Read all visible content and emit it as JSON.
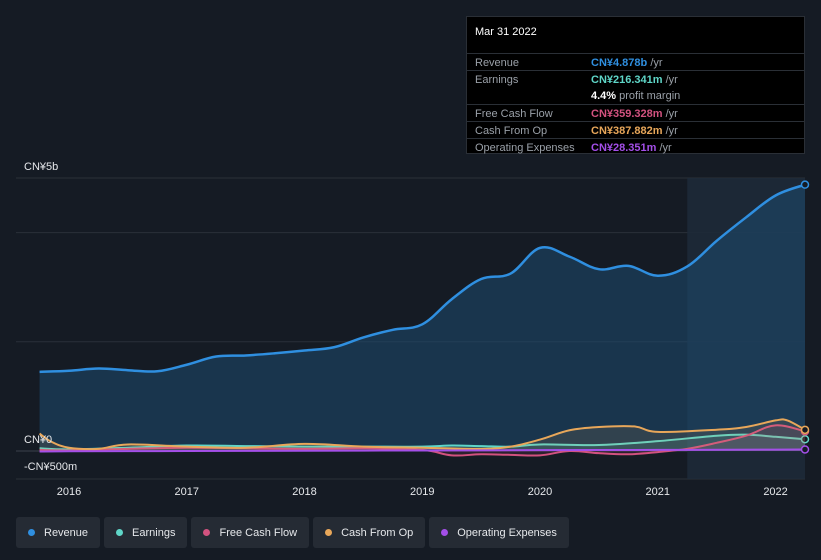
{
  "tooltip": {
    "date": "Mar 31 2022",
    "rows": [
      {
        "label": "Revenue",
        "value": "CN¥4.878b",
        "unit": " /yr",
        "color": "#2f8fe0"
      },
      {
        "label": "Earnings",
        "value": "CN¥216.341m",
        "unit": " /yr",
        "color": "#5fd6c8"
      },
      {
        "label": "",
        "value": "4.4%",
        "unit": " profit margin",
        "color": "#ffffff"
      },
      {
        "label": "Free Cash Flow",
        "value": "CN¥359.328m",
        "unit": " /yr",
        "color": "#d2527f"
      },
      {
        "label": "Cash From Op",
        "value": "CN¥387.882m",
        "unit": " /yr",
        "color": "#e8a75a"
      },
      {
        "label": "Operating Expenses",
        "value": "CN¥28.351m",
        "unit": " /yr",
        "color": "#a44fe8"
      }
    ]
  },
  "legend": [
    {
      "label": "Revenue",
      "color": "#2f8fe0"
    },
    {
      "label": "Earnings",
      "color": "#5fd6c8"
    },
    {
      "label": "Free Cash Flow",
      "color": "#d2527f"
    },
    {
      "label": "Cash From Op",
      "color": "#e8a75a"
    },
    {
      "label": "Operating Expenses",
      "color": "#a44fe8"
    }
  ],
  "chart_data": {
    "type": "area",
    "y_tick_labels": [
      "CN¥5b",
      "CN¥0",
      "-CN¥500m"
    ],
    "ylim": [
      -500,
      5000
    ],
    "x_ticks": [
      {
        "label": "2016",
        "x": 2016.0
      },
      {
        "label": "2017",
        "x": 2017.0
      },
      {
        "label": "2018",
        "x": 2018.0
      },
      {
        "label": "2019",
        "x": 2019.0
      },
      {
        "label": "2020",
        "x": 2020.0
      },
      {
        "label": "2021",
        "x": 2021.0
      },
      {
        "label": "2022",
        "x": 2022.0
      }
    ],
    "xlim": [
      2015.55,
      2022.25
    ],
    "highlight_start": 2021.25,
    "y_unit": "CN¥m",
    "series": [
      {
        "name": "Revenue",
        "color": "#2f8fe0",
        "filled": true,
        "x": [
          2015.75,
          2016.0,
          2016.25,
          2016.5,
          2016.75,
          2017.0,
          2017.25,
          2017.5,
          2017.75,
          2018.0,
          2018.25,
          2018.5,
          2018.75,
          2019.0,
          2019.25,
          2019.5,
          2019.75,
          2020.0,
          2020.25,
          2020.5,
          2020.75,
          2021.0,
          2021.25,
          2021.5,
          2021.75,
          2022.0,
          2022.25
        ],
        "y": [
          1450,
          1470,
          1510,
          1480,
          1460,
          1580,
          1730,
          1750,
          1790,
          1840,
          1900,
          2080,
          2220,
          2320,
          2780,
          3150,
          3250,
          3720,
          3560,
          3330,
          3390,
          3210,
          3380,
          3850,
          4280,
          4680,
          4878
        ]
      },
      {
        "name": "Earnings",
        "color": "#5fd6c8",
        "x": [
          2015.75,
          2016.0,
          2016.5,
          2017.0,
          2017.5,
          2018.0,
          2018.5,
          2019.0,
          2019.25,
          2019.5,
          2019.75,
          2020.0,
          2020.5,
          2021.0,
          2021.5,
          2021.75,
          2022.0,
          2022.25
        ],
        "y": [
          50,
          30,
          60,
          100,
          90,
          80,
          80,
          80,
          100,
          90,
          80,
          120,
          110,
          180,
          280,
          300,
          260,
          216
        ]
      },
      {
        "name": "Free Cash Flow",
        "color": "#d2527f",
        "x": [
          2015.75,
          2016.0,
          2016.5,
          2017.0,
          2017.5,
          2018.0,
          2018.5,
          2019.0,
          2019.25,
          2019.5,
          2019.75,
          2020.0,
          2020.25,
          2020.5,
          2020.75,
          2021.0,
          2021.25,
          2021.5,
          2021.75,
          2022.0,
          2022.25
        ],
        "y": [
          20,
          10,
          40,
          60,
          50,
          40,
          50,
          20,
          -80,
          -60,
          -70,
          -80,
          0,
          -40,
          -60,
          -20,
          40,
          150,
          280,
          470,
          359
        ]
      },
      {
        "name": "Cash From Op",
        "color": "#e8a75a",
        "x": [
          2015.75,
          2015.85,
          2016.0,
          2016.25,
          2016.5,
          2017.0,
          2017.5,
          2018.0,
          2018.5,
          2019.0,
          2019.5,
          2019.75,
          2020.0,
          2020.25,
          2020.5,
          2020.8,
          2021.0,
          2021.5,
          2021.75,
          2022.0,
          2022.1,
          2022.25
        ],
        "y": [
          320,
          170,
          60,
          40,
          120,
          80,
          60,
          130,
          80,
          60,
          40,
          80,
          210,
          380,
          440,
          450,
          350,
          390,
          440,
          560,
          560,
          388
        ]
      },
      {
        "name": "Operating Expenses",
        "color": "#a44fe8",
        "x": [
          2015.75,
          2016.0,
          2017.0,
          2018.0,
          2019.0,
          2020.0,
          2021.0,
          2022.0,
          2022.25
        ],
        "y": [
          -10,
          -5,
          0,
          5,
          10,
          15,
          20,
          25,
          28
        ]
      }
    ]
  }
}
